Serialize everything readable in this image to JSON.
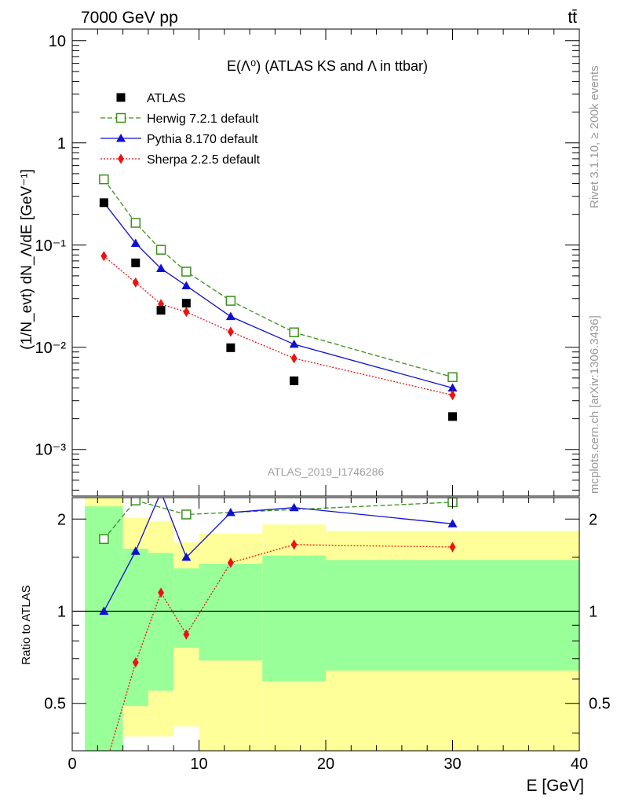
{
  "header": {
    "left": "7000 GeV pp",
    "right": "tt̄"
  },
  "side_labels": {
    "rivet": "Rivet 3.1.10, ≥ 200k events",
    "mcplots": "mcplots.cern.ch [arXiv:1306.3436]"
  },
  "chart_data": [
    {
      "type": "scatter",
      "title": "E(Λ⁰) (ATLAS KS and Λ in ttbar)",
      "watermark": "ATLAS_2019_I1746286",
      "ylabel": "(1/N_evt) dN_Λ/dE [GeV⁻¹]",
      "xlabel": "E [GeV]",
      "yscale": "log",
      "xlim": [
        0,
        40
      ],
      "ylim": [
        0.00035,
        13
      ],
      "y_tick_labels": [
        "10⁻³",
        "10⁻²",
        "10⁻¹",
        "1",
        "10"
      ],
      "legend_position": "top-left",
      "series": [
        {
          "name": "ATLAS",
          "color": "#000000",
          "marker": "square-filled",
          "x": [
            2.5,
            5,
            7,
            9,
            12.5,
            17.5,
            30
          ],
          "y": [
            0.26,
            0.067,
            0.023,
            0.027,
            0.0099,
            0.0047,
            0.0021
          ]
        },
        {
          "name": "Herwig 7.2.1 default",
          "color": "#3a8f1c",
          "marker": "square-open",
          "line": "dashed",
          "x": [
            2.5,
            5,
            7,
            9,
            12.5,
            17.5,
            30
          ],
          "y": [
            0.44,
            0.165,
            0.09,
            0.055,
            0.0285,
            0.014,
            0.0051
          ]
        },
        {
          "name": "Pythia 8.170 default",
          "color": "#1010d0",
          "marker": "triangle",
          "line": "solid",
          "x": [
            2.5,
            5,
            7,
            9,
            12.5,
            17.5,
            30
          ],
          "y": [
            0.26,
            0.104,
            0.059,
            0.04,
            0.02,
            0.0107,
            0.004
          ]
        },
        {
          "name": "Sherpa 2.2.5 default",
          "color": "#ee1111",
          "marker": "diamond",
          "line": "dotted",
          "x": [
            2.5,
            5,
            7,
            9,
            12.5,
            17.5,
            30
          ],
          "y": [
            0.078,
            0.043,
            0.0265,
            0.0222,
            0.0142,
            0.0078,
            0.0034
          ]
        }
      ]
    },
    {
      "type": "line",
      "ylabel": "Ratio to ATLAS",
      "xlabel": "E [GeV]",
      "xlim": [
        0,
        40
      ],
      "ylim": [
        0.35,
        2.35
      ],
      "x_ticks": [
        0,
        10,
        20,
        30,
        40
      ],
      "y_ticks": [
        0.5,
        1,
        2
      ],
      "reference_line": 1,
      "bands": [
        {
          "x0": 1,
          "x1": 4,
          "green": [
            0.33,
            2.2
          ],
          "yellow": [
            0.33,
            2.4
          ]
        },
        {
          "x0": 4,
          "x1": 6,
          "green": [
            0.49,
            1.6
          ],
          "yellow": [
            0.39,
            2.02
          ]
        },
        {
          "x0": 6,
          "x1": 8,
          "green": [
            0.55,
            1.55
          ],
          "yellow": [
            0.39,
            1.97
          ]
        },
        {
          "x0": 8,
          "x1": 10,
          "green": [
            0.76,
            1.38
          ],
          "yellow": [
            0.42,
            1.68
          ]
        },
        {
          "x0": 10,
          "x1": 15,
          "green": [
            0.69,
            1.43
          ],
          "yellow": [
            0.33,
            1.79
          ]
        },
        {
          "x0": 15,
          "x1": 20,
          "green": [
            0.59,
            1.52
          ],
          "yellow": [
            0.33,
            1.92
          ]
        },
        {
          "x0": 20,
          "x1": 40,
          "green": [
            0.64,
            1.47
          ],
          "yellow": [
            0.33,
            1.83
          ]
        }
      ],
      "series": [
        {
          "name": "Herwig 7.2.1 default",
          "color": "#3a8f1c",
          "marker": "square-open",
          "line": "dashed",
          "x": [
            2.5,
            5,
            9,
            30
          ],
          "y": [
            1.72,
            2.3,
            2.07,
            2.27
          ],
          "err": [
            0,
            0,
            0,
            0
          ]
        },
        {
          "name": "Pythia 8.170 default",
          "color": "#1010d0",
          "marker": "triangle",
          "line": "solid",
          "x": [
            2.5,
            5,
            7,
            9,
            12.5,
            17.5,
            30
          ],
          "y": [
            1.0,
            1.57,
            2.45,
            1.5,
            2.1,
            2.18,
            1.93
          ],
          "err": [
            0,
            0,
            0,
            0,
            0.04,
            0.05,
            0.04
          ]
        },
        {
          "name": "Sherpa 2.2.5 default",
          "color": "#ee1111",
          "marker": "diamond",
          "line": "dotted",
          "x": [
            2.5,
            5,
            7,
            9,
            12.5,
            17.5,
            30
          ],
          "y": [
            0.3,
            0.68,
            1.15,
            0.84,
            1.44,
            1.65,
            1.62
          ],
          "err": [
            0,
            0.02,
            0.04,
            0.03,
            0.05,
            0.06,
            0.06
          ]
        }
      ]
    }
  ]
}
